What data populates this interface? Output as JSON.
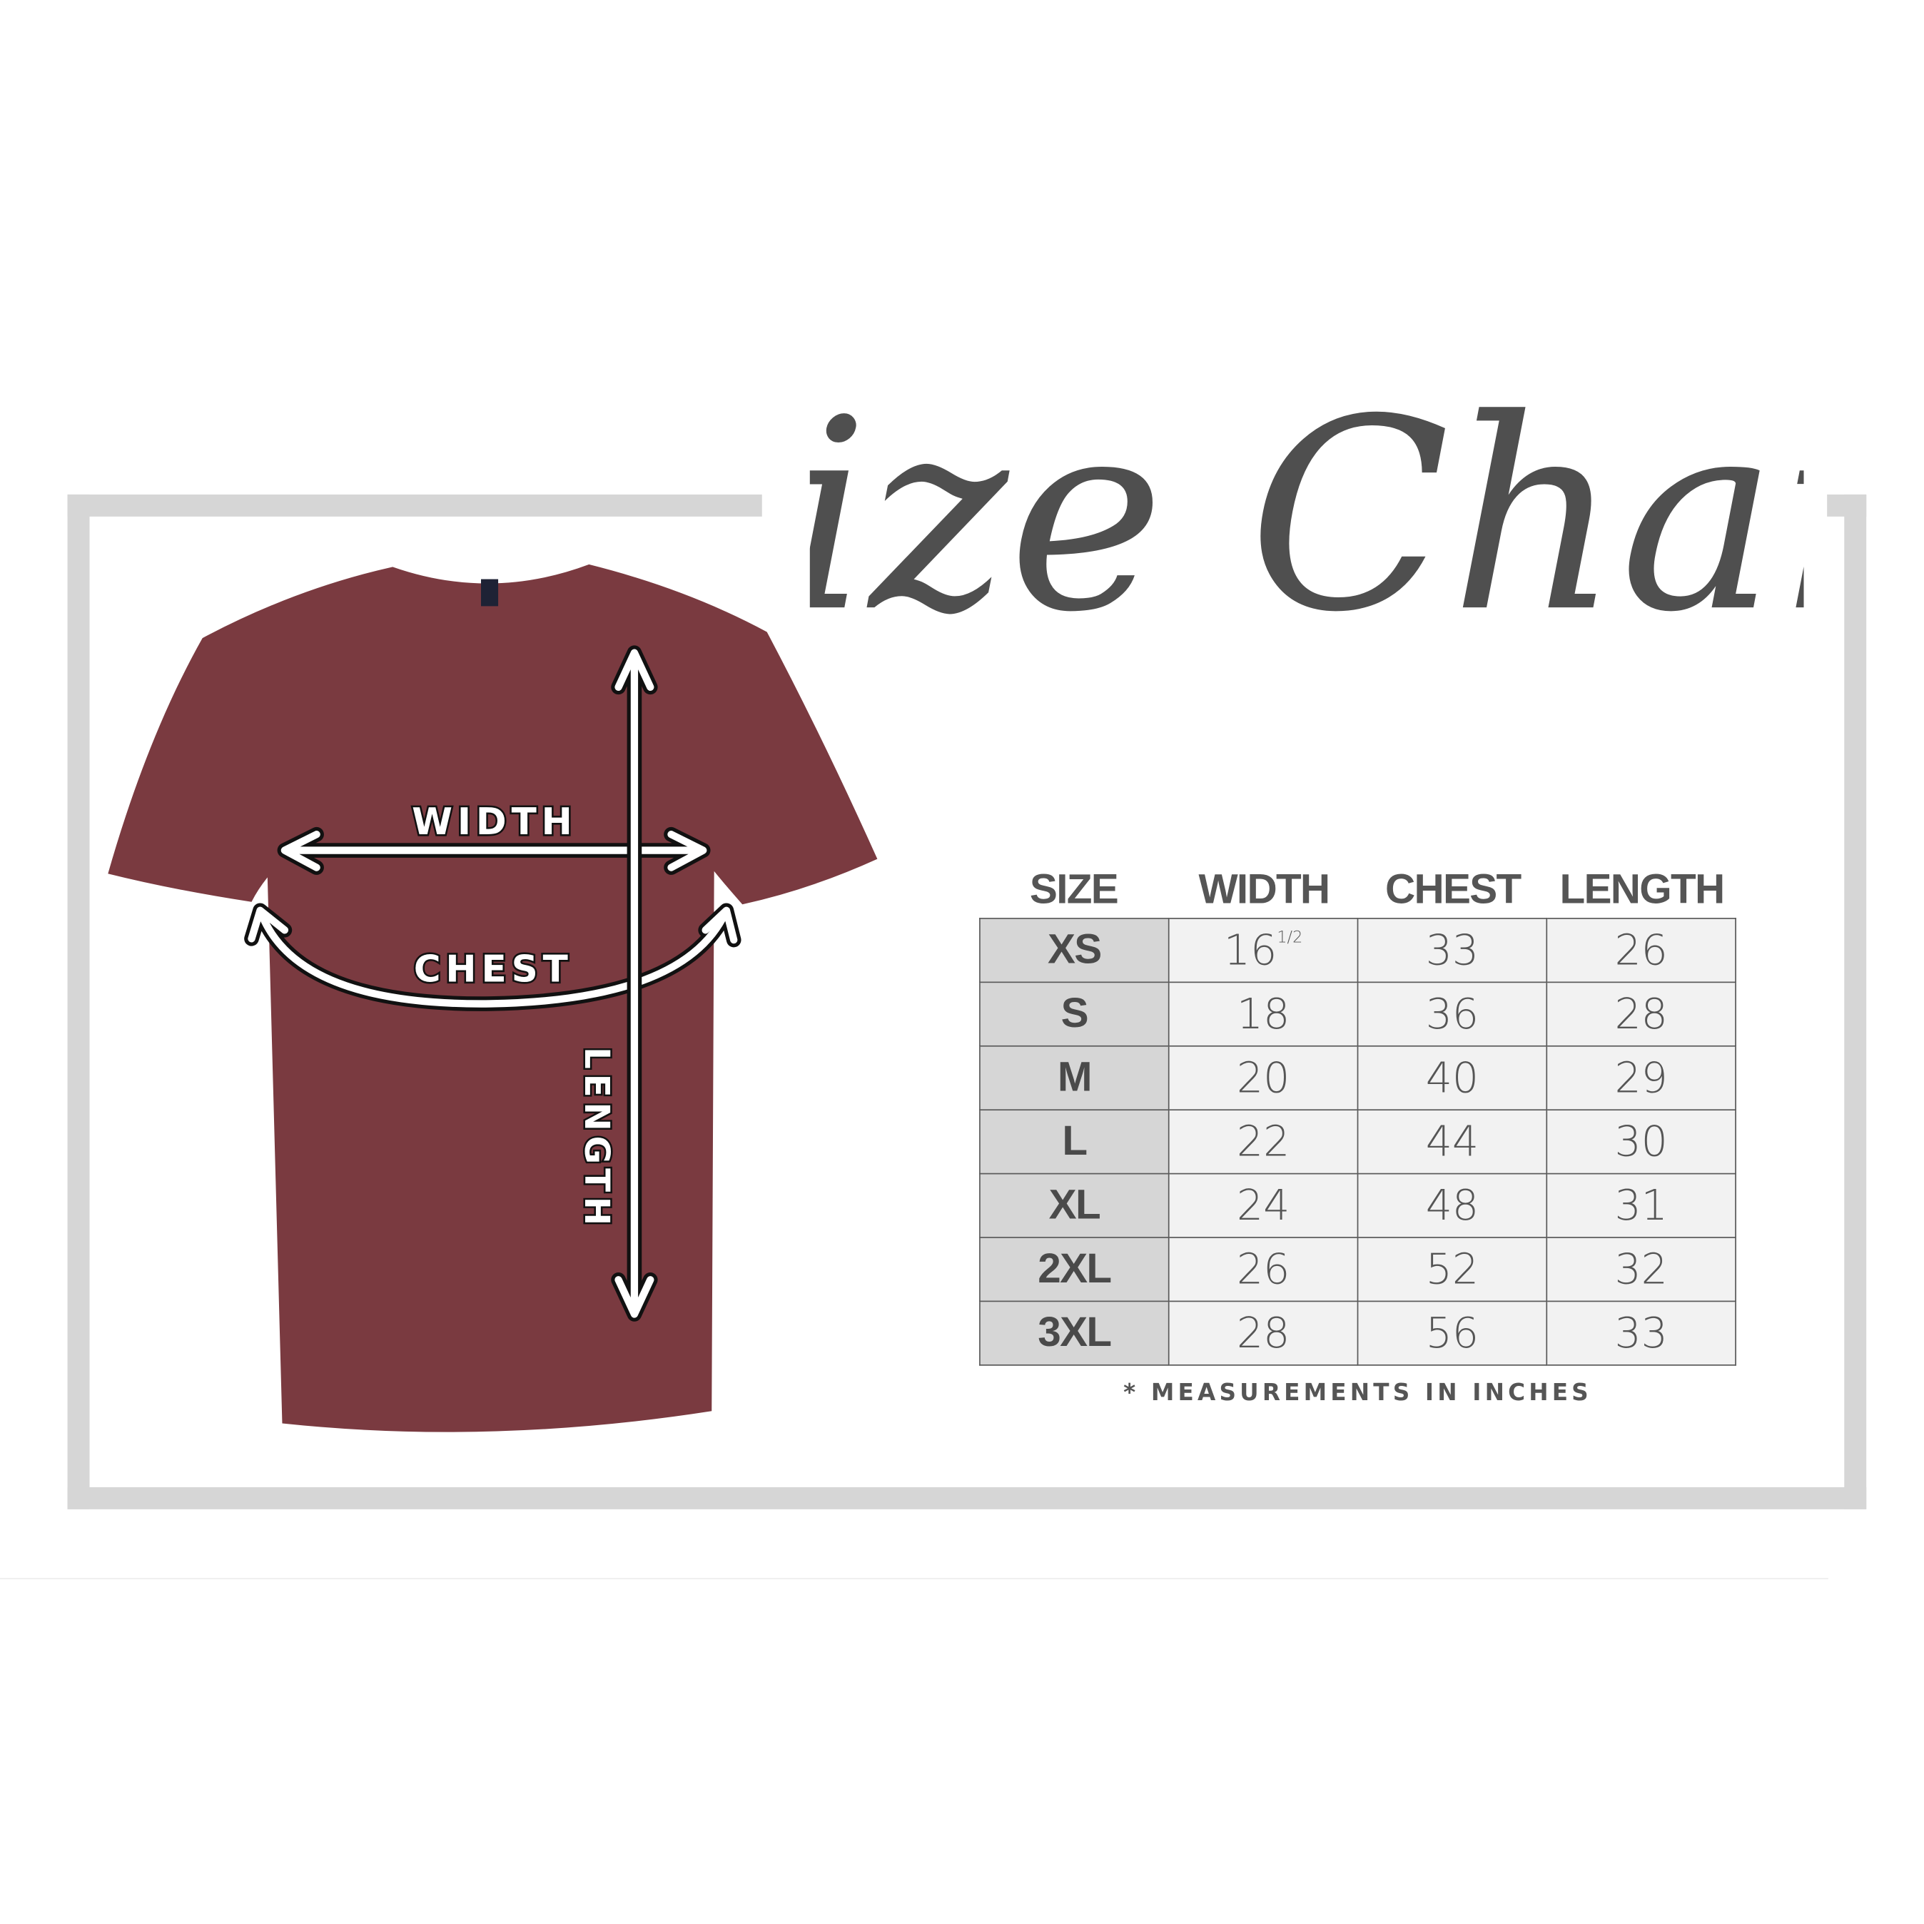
{
  "title": "Size Chart",
  "diagram_labels": {
    "width": "WIDTH",
    "chest": "CHEST",
    "length": "LENGTH"
  },
  "shirt_color": "#7a3a40",
  "table": {
    "headers": [
      "SIZE",
      "WIDTH",
      "CHEST",
      "LENGTH"
    ],
    "rows": [
      {
        "size": "XS",
        "width": "16",
        "width_fraction": "1/2",
        "chest": "33",
        "length": "26"
      },
      {
        "size": "S",
        "width": "18",
        "chest": "36",
        "length": "28"
      },
      {
        "size": "M",
        "width": "20",
        "chest": "40",
        "length": "29"
      },
      {
        "size": "L",
        "width": "22",
        "chest": "44",
        "length": "30"
      },
      {
        "size": "XL",
        "width": "24",
        "chest": "48",
        "length": "31"
      },
      {
        "size": "2XL",
        "width": "26",
        "chest": "52",
        "length": "32"
      },
      {
        "size": "3XL",
        "width": "28",
        "chest": "56",
        "length": "33"
      }
    ]
  },
  "footnote": "* MEASUREMENTS IN INCHES"
}
